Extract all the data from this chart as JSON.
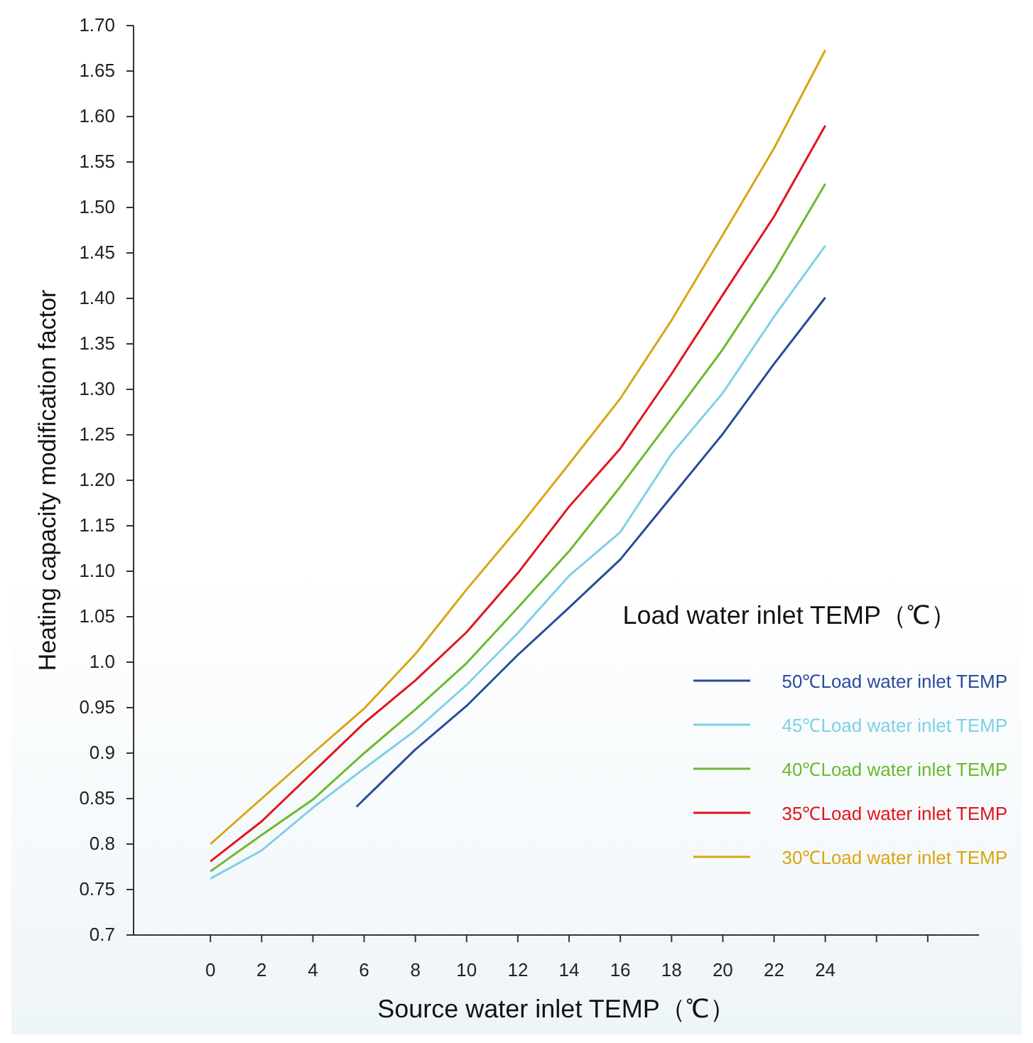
{
  "chart_data": {
    "type": "line",
    "xlabel": "Source water inlet TEMP（℃）",
    "ylabel": "Heating capacity modification factor",
    "legend_title": "Load water inlet TEMP（℃）",
    "legend": "bottom right",
    "grid": false,
    "marker": "none",
    "line_style": "solid",
    "x": [
      0,
      2,
      4,
      6,
      8,
      10,
      12,
      14,
      16,
      18,
      20,
      22,
      24
    ],
    "xlim": [
      -3,
      30
    ],
    "xticks": [
      0,
      2,
      4,
      6,
      8,
      10,
      12,
      14,
      16,
      18,
      20,
      22,
      24,
      {
        "value": 26,
        "label": null
      },
      {
        "value": 28,
        "label": null
      }
    ],
    "ylim": [
      0.7,
      1.7
    ],
    "yticks": [
      0.7,
      0.75,
      0.8,
      0.85,
      0.9,
      0.95,
      {
        "value": 1,
        "label": "1.0"
      },
      1.05,
      {
        "value": 1.1,
        "label": "1.10"
      },
      1.15,
      {
        "value": 1.2,
        "label": "1.20"
      },
      1.25,
      {
        "value": 1.3,
        "label": "1.30"
      },
      1.35,
      {
        "value": 1.4,
        "label": "1.40"
      },
      1.45,
      {
        "value": 1.5,
        "label": "1.50"
      },
      1.55,
      {
        "value": 1.6,
        "label": "1.60"
      },
      1.65,
      {
        "value": 1.7,
        "label": "1.70"
      }
    ],
    "series": [
      {
        "name": "50℃Load water inlet TEMP",
        "color": "#2b4a9a",
        "x": [
          5.7,
          8,
          10,
          12,
          14,
          16,
          18,
          20,
          22,
          24
        ],
        "values": [
          0.841,
          0.904,
          0.952,
          1.008,
          1.06,
          1.113,
          1.182,
          1.251,
          1.328,
          1.401
        ]
      },
      {
        "name": "45℃Load water inlet TEMP",
        "color": "#7fd0e6",
        "values": [
          0.762,
          0.793,
          0.84,
          0.883,
          0.925,
          0.975,
          1.032,
          1.095,
          1.143,
          1.229,
          1.296,
          1.38,
          1.458
        ]
      },
      {
        "name": "40℃Load water inlet TEMP",
        "color": "#6cb92f",
        "values": [
          0.77,
          0.81,
          0.849,
          0.9,
          0.948,
          0.999,
          1.06,
          1.122,
          1.193,
          1.268,
          1.344,
          1.43,
          1.526
        ]
      },
      {
        "name": "35℃Load water inlet TEMP",
        "color": "#e3141c",
        "values": [
          0.781,
          0.825,
          0.879,
          0.933,
          0.98,
          1.033,
          1.098,
          1.171,
          1.235,
          1.317,
          1.404,
          1.49,
          1.59
        ]
      },
      {
        "name": "30℃Load water inlet TEMP",
        "color": "#d9a512",
        "values": [
          0.8,
          0.85,
          0.9,
          0.949,
          1.009,
          1.08,
          1.147,
          1.218,
          1.29,
          1.376,
          1.47,
          1.565,
          1.673
        ]
      }
    ]
  }
}
